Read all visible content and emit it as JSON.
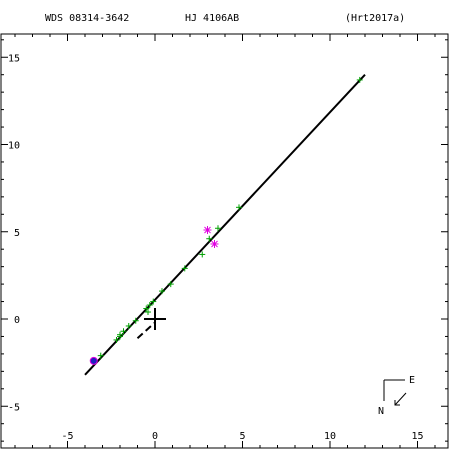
{
  "chart_data": {
    "type": "scatter",
    "header": {
      "wds": "WDS 08314-3642",
      "discoverer": "HJ 4106AB",
      "reference": "(Hrt2017a)"
    },
    "x_axis": {
      "ticks": [
        -5,
        0,
        5,
        10,
        15
      ],
      "tick_labels": [
        "-5",
        "0",
        "5",
        "10",
        "15"
      ],
      "range": [
        -8.9,
        16.7
      ]
    },
    "y_axis": {
      "ticks": [
        15,
        10,
        5,
        0,
        -5
      ],
      "tick_labels": [
        "15",
        "10",
        "5",
        "0",
        "-5"
      ],
      "range": [
        -7.4,
        16.9
      ],
      "inverted": true
    },
    "orientation": {
      "east_label": "E",
      "north_label": "N"
    },
    "series": [
      {
        "marker": "plus",
        "color": "#00a000",
        "x": [
          11.7,
          4.8,
          3.6,
          3.1,
          2.7,
          1.7,
          0.9,
          0.4,
          -0.1,
          -0.3,
          -0.5,
          -0.4,
          -1.1,
          -1.5,
          -1.8,
          -2.0,
          -2.0,
          -2.2,
          -3.1
        ],
        "y": [
          13.7,
          6.4,
          5.2,
          4.6,
          3.7,
          2.9,
          2.0,
          1.6,
          1.0,
          0.8,
          0.6,
          0.4,
          -0.1,
          -0.4,
          -0.7,
          -0.9,
          -1.0,
          -1.2,
          -2.1
        ]
      },
      {
        "marker": "asterisk",
        "color": "#e000e0",
        "x": [
          3.0,
          3.4
        ],
        "y": [
          5.1,
          4.3
        ]
      }
    ],
    "primary": {
      "x": 0,
      "y": 0
    },
    "reference_point": {
      "x": -3.5,
      "y": -2.4,
      "color": "#2020c0",
      "ring": "#e000e0"
    },
    "orbit_line": {
      "x": [
        -4.0,
        12.0
      ],
      "y": [
        -3.2,
        14.0
      ]
    },
    "residual_line": {
      "x": [
        -1.0,
        0.0
      ],
      "y": [
        -1.1,
        -0.2
      ]
    }
  }
}
